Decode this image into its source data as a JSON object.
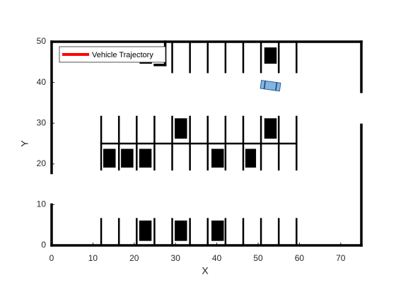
{
  "chart_data": {
    "type": "parking",
    "xlabel": "X",
    "ylabel": "Y",
    "xlim": [
      0,
      75
    ],
    "ylim": [
      0,
      50
    ],
    "xticks": [
      0,
      10,
      20,
      30,
      40,
      50,
      60,
      70
    ],
    "yticks": [
      0,
      10,
      20,
      30,
      40,
      50
    ],
    "legend": "upper left",
    "series": [
      {
        "name": "Vehicle Trajectory",
        "color": "#ff0000",
        "x": [],
        "y": []
      }
    ],
    "wall_color": "#000000",
    "walls": [
      {
        "x1": 0,
        "y1": 50,
        "x2": 75,
        "y2": 50
      },
      {
        "x1": 0,
        "y1": 0,
        "x2": 75,
        "y2": 0
      },
      {
        "x1": 0,
        "y1": 50,
        "x2": 0,
        "y2": 17.8
      },
      {
        "x1": 0,
        "y1": 10,
        "x2": 0,
        "y2": 0
      },
      {
        "x1": 75,
        "y1": 50,
        "x2": 75,
        "y2": 37.7
      },
      {
        "x1": 75,
        "y1": 29.6,
        "x2": 75,
        "y2": 0
      },
      {
        "x1": 27.5,
        "y1": 50,
        "x2": 27.5,
        "y2": 44.3
      },
      {
        "x1": 25,
        "y1": 44.3,
        "x2": 27.5,
        "y2": 44.3
      }
    ],
    "lines": [
      {
        "x1": 12,
        "y1": 18.6,
        "x2": 12,
        "y2": 31.6
      },
      {
        "x1": 16.3,
        "y1": 18.6,
        "x2": 16.3,
        "y2": 31.6
      },
      {
        "x1": 20.6,
        "y1": 18.6,
        "x2": 20.6,
        "y2": 31.6
      },
      {
        "x1": 24.9,
        "y1": 18.6,
        "x2": 24.9,
        "y2": 31.6
      },
      {
        "x1": 29.2,
        "y1": 18.6,
        "x2": 29.2,
        "y2": 31.6
      },
      {
        "x1": 33.5,
        "y1": 18.6,
        "x2": 33.5,
        "y2": 31.6
      },
      {
        "x1": 37.8,
        "y1": 18.6,
        "x2": 37.8,
        "y2": 31.6
      },
      {
        "x1": 42.1,
        "y1": 18.6,
        "x2": 42.1,
        "y2": 31.6
      },
      {
        "x1": 46.4,
        "y1": 18.6,
        "x2": 46.4,
        "y2": 31.6
      },
      {
        "x1": 50.7,
        "y1": 18.6,
        "x2": 50.7,
        "y2": 31.6
      },
      {
        "x1": 55,
        "y1": 18.6,
        "x2": 55,
        "y2": 31.6
      },
      {
        "x1": 59.3,
        "y1": 18.6,
        "x2": 59.3,
        "y2": 31.6
      },
      {
        "x1": 12,
        "y1": 0,
        "x2": 12,
        "y2": 6.5
      },
      {
        "x1": 16.3,
        "y1": 0,
        "x2": 16.3,
        "y2": 6.5
      },
      {
        "x1": 20.6,
        "y1": 0,
        "x2": 20.6,
        "y2": 6.5
      },
      {
        "x1": 24.9,
        "y1": 0,
        "x2": 24.9,
        "y2": 6.5
      },
      {
        "x1": 29.2,
        "y1": 0,
        "x2": 29.2,
        "y2": 6.5
      },
      {
        "x1": 33.5,
        "y1": 0,
        "x2": 33.5,
        "y2": 6.5
      },
      {
        "x1": 37.8,
        "y1": 0,
        "x2": 37.8,
        "y2": 6.5
      },
      {
        "x1": 42.1,
        "y1": 0,
        "x2": 42.1,
        "y2": 6.5
      },
      {
        "x1": 46.4,
        "y1": 0,
        "x2": 46.4,
        "y2": 6.5
      },
      {
        "x1": 50.7,
        "y1": 0,
        "x2": 50.7,
        "y2": 6.5
      },
      {
        "x1": 55,
        "y1": 0,
        "x2": 55,
        "y2": 6.5
      },
      {
        "x1": 59.3,
        "y1": 0,
        "x2": 59.3,
        "y2": 6.5
      },
      {
        "x1": 29.2,
        "y1": 42.5,
        "x2": 29.2,
        "y2": 50
      },
      {
        "x1": 33.5,
        "y1": 42.5,
        "x2": 33.5,
        "y2": 50
      },
      {
        "x1": 37.8,
        "y1": 42.5,
        "x2": 37.8,
        "y2": 50
      },
      {
        "x1": 42.1,
        "y1": 42.5,
        "x2": 42.1,
        "y2": 50
      },
      {
        "x1": 46.4,
        "y1": 42.5,
        "x2": 46.4,
        "y2": 50
      },
      {
        "x1": 50.7,
        "y1": 42.5,
        "x2": 50.7,
        "y2": 50
      },
      {
        "x1": 55,
        "y1": 42.5,
        "x2": 55,
        "y2": 50
      },
      {
        "x1": 59.3,
        "y1": 42.5,
        "x2": 59.3,
        "y2": 50
      },
      {
        "x1": 12,
        "y1": 25,
        "x2": 59.3,
        "y2": 25
      }
    ],
    "obstacles": [
      {
        "x": 21.3,
        "y": 44.6,
        "w": 3,
        "h": 4
      },
      {
        "x": 51.5,
        "y": 44.6,
        "w": 3,
        "h": 4
      },
      {
        "x": 29.8,
        "y": 26.2,
        "w": 3,
        "h": 5
      },
      {
        "x": 51.5,
        "y": 26.2,
        "w": 3,
        "h": 5
      },
      {
        "x": 12.5,
        "y": 19.1,
        "w": 3,
        "h": 4.6
      },
      {
        "x": 16.8,
        "y": 19.1,
        "w": 3,
        "h": 4.6
      },
      {
        "x": 21.2,
        "y": 19.1,
        "w": 3,
        "h": 4.6
      },
      {
        "x": 38.7,
        "y": 19.1,
        "w": 3,
        "h": 4.6
      },
      {
        "x": 46.9,
        "y": 19.1,
        "w": 2.6,
        "h": 4.6
      },
      {
        "x": 21.2,
        "y": 1.1,
        "w": 3,
        "h": 5
      },
      {
        "x": 29.8,
        "y": 1.1,
        "w": 3,
        "h": 5
      },
      {
        "x": 38.7,
        "y": 1.1,
        "w": 3,
        "h": 5
      }
    ],
    "vehicle": {
      "x": 53,
      "y": 39.2,
      "length": 4.7,
      "width": 2,
      "heading": -8,
      "color": "#6fa8dc"
    }
  }
}
